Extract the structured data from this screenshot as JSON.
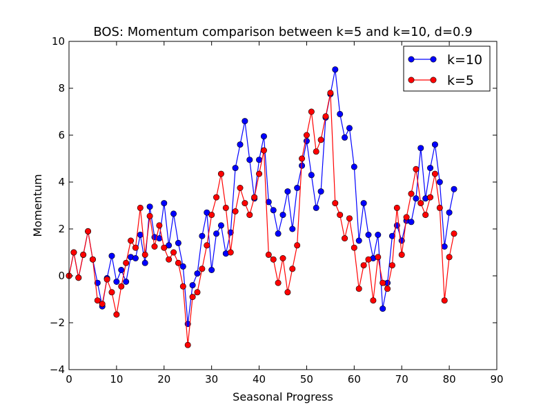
{
  "chart_data": {
    "type": "line",
    "title": "BOS: Momentum comparison between k=5 and k=10, d=0.9",
    "xlabel": "Seasonal Progress",
    "ylabel": "Momentum",
    "xlim": [
      0,
      90
    ],
    "ylim": [
      -4,
      10
    ],
    "xticks": [
      0,
      10,
      20,
      30,
      40,
      50,
      60,
      70,
      80,
      90
    ],
    "yticks": [
      -4,
      -2,
      0,
      2,
      4,
      6,
      8,
      10
    ],
    "xtick_labels": [
      "0",
      "10",
      "20",
      "30",
      "40",
      "50",
      "60",
      "70",
      "80",
      "90"
    ],
    "ytick_labels": [
      "−4",
      "−2",
      "0",
      "2",
      "4",
      "6",
      "8",
      "10"
    ],
    "grid": false,
    "legend_position": "top-right",
    "x": [
      0,
      1,
      2,
      3,
      4,
      5,
      6,
      7,
      8,
      9,
      10,
      11,
      12,
      13,
      14,
      15,
      16,
      17,
      18,
      19,
      20,
      21,
      22,
      23,
      24,
      25,
      26,
      27,
      28,
      29,
      30,
      31,
      32,
      33,
      34,
      35,
      36,
      37,
      38,
      39,
      40,
      41,
      42,
      43,
      44,
      45,
      46,
      47,
      48,
      49,
      50,
      51,
      52,
      53,
      54,
      55,
      56,
      57,
      58,
      59,
      60,
      61,
      62,
      63,
      64,
      65,
      66,
      67,
      68,
      69,
      70,
      71,
      72,
      73,
      74,
      75,
      76,
      77,
      78,
      79,
      80,
      81
    ],
    "series": [
      {
        "name": "k=10",
        "color": "#0000ff",
        "values": [
          0.0,
          1.0,
          -0.08,
          0.9,
          1.9,
          0.7,
          -0.3,
          -1.3,
          -0.1,
          0.85,
          -0.25,
          0.25,
          -0.25,
          0.8,
          0.75,
          1.75,
          0.55,
          2.95,
          1.65,
          1.6,
          3.1,
          1.3,
          2.65,
          1.4,
          0.4,
          -2.05,
          -0.4,
          0.1,
          1.7,
          2.7,
          0.25,
          1.8,
          2.15,
          0.95,
          1.85,
          4.6,
          5.6,
          6.6,
          4.95,
          3.3,
          4.95,
          5.95,
          3.15,
          2.8,
          1.8,
          2.6,
          3.6,
          2.0,
          3.75,
          4.7,
          5.75,
          4.3,
          2.9,
          3.6,
          6.75,
          7.75,
          8.8,
          6.9,
          5.9,
          6.3,
          4.65,
          1.5,
          3.1,
          1.75,
          0.75,
          1.75,
          -1.4,
          -0.3,
          1.7,
          2.15,
          1.5,
          2.35,
          2.3,
          3.3,
          5.45,
          3.3,
          4.6,
          5.6,
          4.0,
          1.25,
          2.7,
          3.7
        ]
      },
      {
        "name": "k=5",
        "color": "#ff0000",
        "values": [
          0.0,
          1.0,
          -0.08,
          0.9,
          1.9,
          0.7,
          -1.05,
          -1.2,
          -0.15,
          -0.7,
          -1.65,
          -0.45,
          0.55,
          1.5,
          1.2,
          2.9,
          0.9,
          2.55,
          1.25,
          2.15,
          1.2,
          0.7,
          1.0,
          0.55,
          -0.45,
          -2.95,
          -0.9,
          -0.7,
          0.3,
          1.3,
          2.6,
          3.35,
          4.35,
          2.9,
          1.0,
          2.75,
          3.75,
          3.1,
          2.6,
          3.35,
          4.35,
          5.35,
          0.9,
          0.7,
          -0.3,
          0.75,
          -0.7,
          0.3,
          1.3,
          5.0,
          6.0,
          7.0,
          5.3,
          5.8,
          6.8,
          7.8,
          3.1,
          2.6,
          1.6,
          2.45,
          1.2,
          -0.55,
          0.45,
          0.7,
          -1.05,
          0.8,
          -0.3,
          -0.55,
          0.45,
          2.9,
          0.9,
          2.5,
          3.5,
          4.55,
          3.1,
          2.6,
          3.35,
          4.35,
          2.9,
          -1.05,
          0.8,
          1.8
        ]
      }
    ]
  }
}
